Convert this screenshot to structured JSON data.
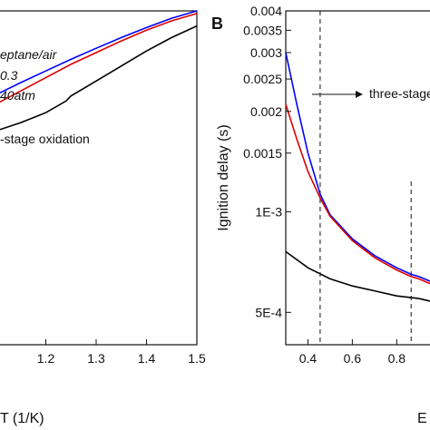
{
  "chart_data": [
    {
      "panel": "A",
      "type": "line",
      "xlabel": "T (1/K)",
      "xlim": [
        1.1,
        1.5
      ],
      "xticks": [
        "1.2",
        "1.3",
        "1.4",
        "1.5"
      ],
      "annotations": [
        "eptane/air",
        "0.3",
        "40atm",
        "-stage oxidation"
      ],
      "series": [
        {
          "color": "#0000ff",
          "x": [
            1.1,
            1.15,
            1.2,
            1.25,
            1.3,
            1.35,
            1.4,
            1.45,
            1.5
          ],
          "y": [
            0.252,
            0.215,
            0.18,
            0.145,
            0.112,
            0.08,
            0.05,
            0.022,
            0.0
          ]
        },
        {
          "color": "#dd0000",
          "x": [
            1.1,
            1.15,
            1.2,
            1.25,
            1.3,
            1.35,
            1.4,
            1.45,
            1.5
          ],
          "y": [
            0.28,
            0.24,
            0.2,
            0.16,
            0.125,
            0.09,
            0.058,
            0.03,
            0.008
          ]
        },
        {
          "color": "#000000",
          "x": [
            1.1,
            1.15,
            1.2,
            1.24,
            1.25,
            1.3,
            1.35,
            1.4,
            1.45,
            1.5
          ],
          "y": [
            0.36,
            0.335,
            0.305,
            0.27,
            0.255,
            0.21,
            0.165,
            0.12,
            0.08,
            0.045
          ]
        }
      ]
    },
    {
      "panel": "B",
      "label": "B",
      "type": "line",
      "ylabel": "Ignition delay (s)",
      "xlabel": "E",
      "xlim": [
        0.3,
        1.0
      ],
      "ylim": [
        0.0004,
        0.004
      ],
      "yscale": "log",
      "yticks": [
        {
          "value": 0.0005,
          "label": "5E-4"
        },
        {
          "value": 0.001,
          "label": "1E-3"
        },
        {
          "value": 0.0015,
          "label": "0.0015"
        },
        {
          "value": 0.002,
          "label": "0.002"
        },
        {
          "value": 0.0025,
          "label": "0.0025"
        },
        {
          "value": 0.003,
          "label": "0.003"
        },
        {
          "value": 0.0035,
          "label": "0.0035"
        },
        {
          "value": 0.004,
          "label": "0.004"
        }
      ],
      "xticks": [
        {
          "value": 0.4,
          "label": "0.4"
        },
        {
          "value": 0.6,
          "label": "0.6"
        },
        {
          "value": 0.8,
          "label": "0.8"
        }
      ],
      "vlines": [
        0.455,
        0.865
      ],
      "annotation": "three-stage",
      "series": [
        {
          "color": "#0000ff",
          "x": [
            0.3,
            0.35,
            0.4,
            0.455,
            0.5,
            0.6,
            0.7,
            0.8,
            0.865,
            0.9,
            0.95
          ],
          "y": [
            0.003,
            0.0021,
            0.0015,
            0.00113,
            0.00098,
            0.00083,
            0.00074,
            0.00068,
            0.00065,
            0.00064,
            0.00062
          ]
        },
        {
          "color": "#dd0000",
          "x": [
            0.3,
            0.35,
            0.4,
            0.455,
            0.5,
            0.6,
            0.7,
            0.8,
            0.865,
            0.9,
            0.95
          ],
          "y": [
            0.0021,
            0.00165,
            0.00132,
            0.0011,
            0.00097,
            0.00082,
            0.00073,
            0.00067,
            0.00064,
            0.00063,
            0.00061
          ]
        },
        {
          "color": "#000000",
          "x": [
            0.3,
            0.4,
            0.5,
            0.6,
            0.7,
            0.8,
            0.9,
            0.95
          ],
          "y": [
            0.00076,
            0.00068,
            0.00063,
            0.0006,
            0.00058,
            0.00056,
            0.00055,
            0.00054
          ]
        }
      ]
    }
  ]
}
